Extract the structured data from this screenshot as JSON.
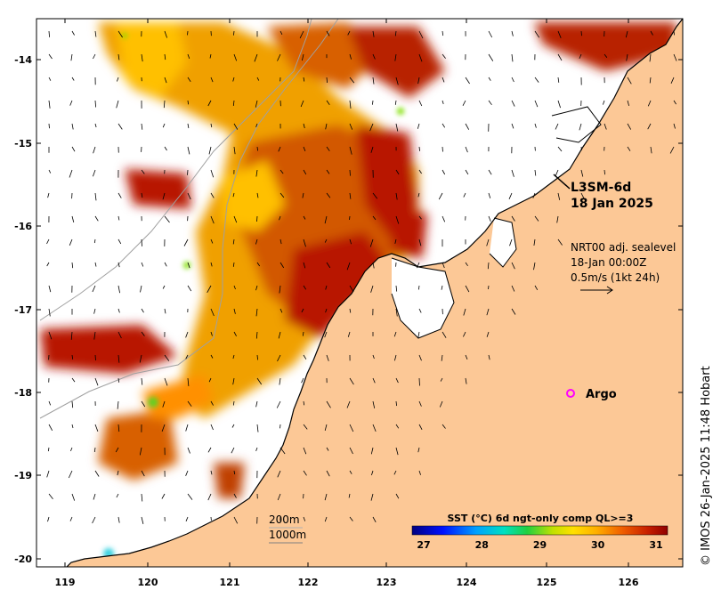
{
  "product": {
    "title_line1": "L3SM-6d",
    "title_line2": "18 Jan 2025"
  },
  "currents": {
    "line1": "NRT00 adj. sealevel",
    "line2": "18-Jan 00:00Z",
    "line3": "0.5m/s (1kt 24h)"
  },
  "argo": {
    "label": "Argo",
    "marker_color": "#ff00ff"
  },
  "contours": {
    "label1": "200m",
    "label2": "1000m"
  },
  "colorbar": {
    "title": "SST (°C) 6d ngt-only comp QL>=3",
    "ticks": [
      "27",
      "28",
      "29",
      "30",
      "31"
    ],
    "range": [
      26.8,
      31.2
    ]
  },
  "axes": {
    "x_ticks": [
      "119",
      "120",
      "121",
      "122",
      "123",
      "124",
      "125",
      "126"
    ],
    "y_ticks": [
      "-14",
      "-15",
      "-16",
      "-17",
      "-18",
      "-19",
      "-20"
    ]
  },
  "credit": "© IMOS 26-Jan-2025 11:48 Hobart",
  "colors": {
    "land": "#fcc896",
    "ocean_nodata": "#ffffff",
    "sst_warm": "#b01000",
    "sst_mid": "#e88000",
    "sst_cool": "#ffd000"
  }
}
